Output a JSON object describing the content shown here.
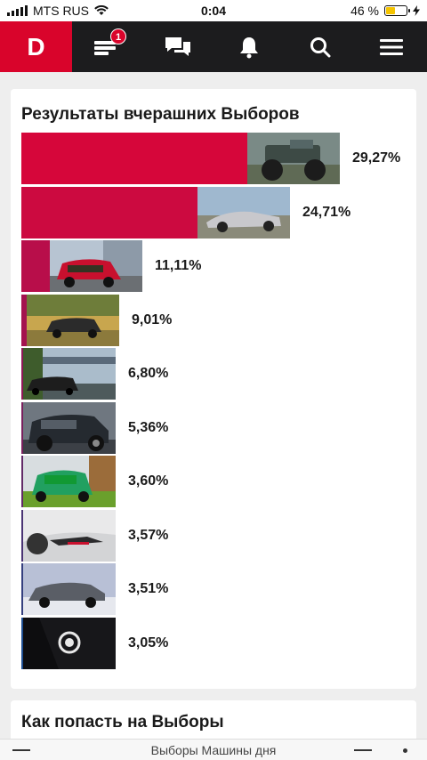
{
  "status": {
    "carrier": "MTS RUS",
    "time": "0:04",
    "battery": "46 %",
    "battery_level": 0.46
  },
  "header": {
    "logo": "D",
    "notifications_badge": "1",
    "icons": [
      "feed-icon",
      "messages-icon",
      "bell-icon",
      "search-icon",
      "menu-icon"
    ]
  },
  "results": {
    "title": "Результаты вчерашних Выборов",
    "items": [
      {
        "percent": "29,27%",
        "value": 29.27,
        "color": "#d6063a",
        "thumb": "monster-truck"
      },
      {
        "percent": "24,71%",
        "value": 24.71,
        "color": "#cc0a40",
        "thumb": "silver-corvette"
      },
      {
        "percent": "11,11%",
        "value": 11.11,
        "color": "#b80e4a",
        "thumb": "red-golf"
      },
      {
        "percent": "9,01%",
        "value": 9.01,
        "color": "#a4124f",
        "thumb": "dark-sedan"
      },
      {
        "percent": "6,80%",
        "value": 6.8,
        "color": "#8f1858",
        "thumb": "black-car-bridge"
      },
      {
        "percent": "5,36%",
        "value": 5.36,
        "color": "#7a215f",
        "thumb": "dark-suv"
      },
      {
        "percent": "3,60%",
        "value": 3.6,
        "color": "#622a68",
        "thumb": "green-car"
      },
      {
        "percent": "3,57%",
        "value": 3.57,
        "color": "#4a3474",
        "thumb": "white-golf"
      },
      {
        "percent": "3,51%",
        "value": 3.51,
        "color": "#35407f",
        "thumb": "grey-sedan"
      },
      {
        "percent": "3,05%",
        "value": 3.05,
        "color": "#1f4f92",
        "thumb": "window-sticker"
      }
    ]
  },
  "next_section": {
    "title": "Как попасть на Выборы"
  },
  "bottom": {
    "title": "Выборы Машины дня"
  }
}
